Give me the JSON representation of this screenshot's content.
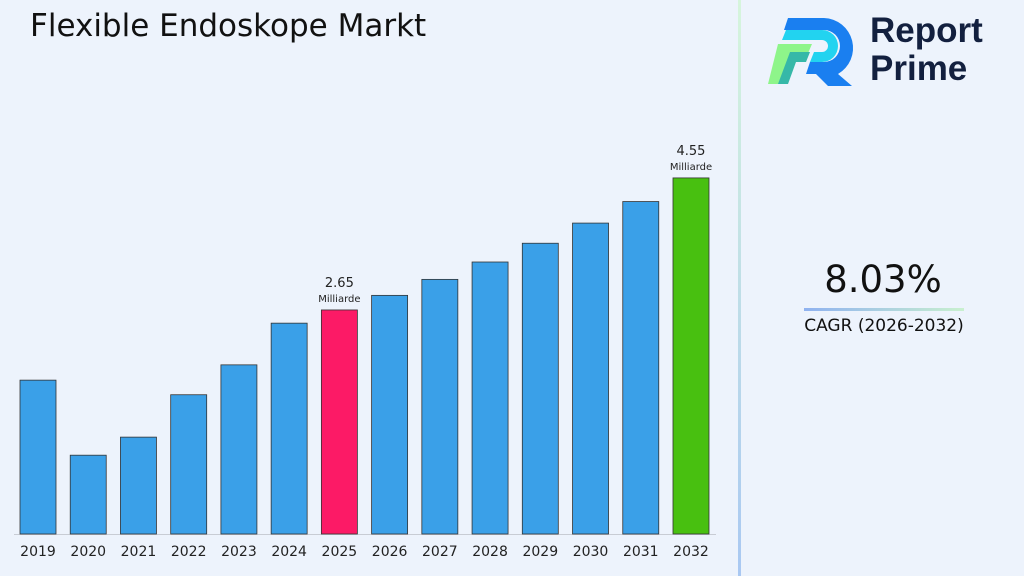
{
  "title": "Flexible Endoskope Markt",
  "logo": {
    "line1": "Report",
    "line2": "Prime"
  },
  "cagr": {
    "value": "8.03%",
    "label": "CAGR (2026-2032)"
  },
  "colors": {
    "default": "#3aa0e8",
    "highlight_2025": "#fc1a66",
    "highlight_2032": "#48c010",
    "background": "#edf3fc"
  },
  "chart_data": {
    "type": "bar",
    "categories": [
      "2019",
      "2020",
      "2021",
      "2022",
      "2023",
      "2024",
      "2025",
      "2026",
      "2027",
      "2028",
      "2029",
      "2030",
      "2031",
      "2032"
    ],
    "values": [
      1.64,
      0.56,
      0.82,
      1.43,
      1.86,
      2.46,
      2.65,
      2.86,
      3.09,
      3.34,
      3.61,
      3.9,
      4.21,
      4.55
    ],
    "data_labels": [
      {
        "category": "2025",
        "value": "2.65",
        "unit": "Milliarde"
      },
      {
        "category": "2032",
        "value": "4.55",
        "unit": "Milliarde"
      }
    ],
    "title": "Flexible Endoskope Markt",
    "xlabel": "",
    "ylabel": "",
    "grid": false
  }
}
